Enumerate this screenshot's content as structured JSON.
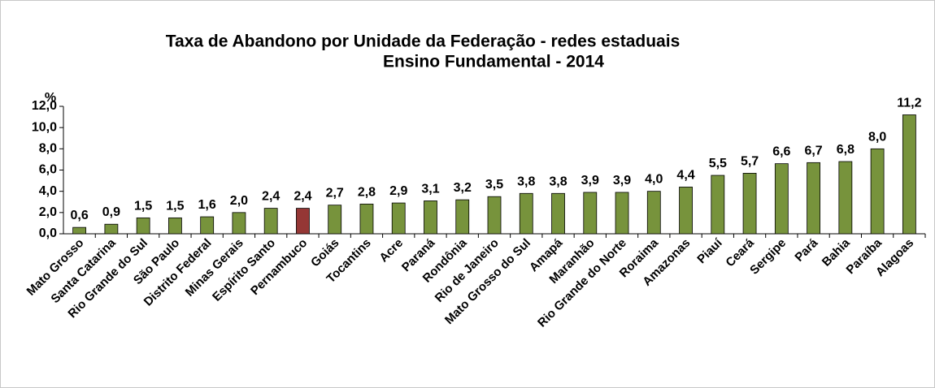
{
  "chart_data": {
    "type": "bar",
    "title": "Taxa de Abandono por Unidade da Federação - redes estaduais",
    "subtitle": "Ensino Fundamental - 2014",
    "y_label": "%",
    "categories": [
      "Mato Grosso",
      "Santa Catarina",
      "Rio Grande do Sul",
      "São Paulo",
      "Distrito Federal",
      "Minas Gerais",
      "Espírito Santo",
      "Pernambuco",
      "Goiás",
      "Tocantins",
      "Acre",
      "Paraná",
      "Rondônia",
      "Rio de Janeiro",
      "Mato Grosso do Sul",
      "Amapá",
      "Maranhão",
      "Rio Grande do Norte",
      "Roraima",
      "Amazonas",
      "Piauí",
      "Ceará",
      "Sergipe",
      "Pará",
      "Bahia",
      "Paraíba",
      "Alagoas"
    ],
    "values": [
      0.6,
      0.9,
      1.5,
      1.5,
      1.6,
      2.0,
      2.4,
      2.4,
      2.7,
      2.8,
      2.9,
      3.1,
      3.2,
      3.5,
      3.8,
      3.8,
      3.9,
      3.9,
      4.0,
      4.4,
      5.5,
      5.7,
      6.6,
      6.7,
      6.8,
      8.0,
      11.2
    ],
    "value_labels": [
      "0,6",
      "0,9",
      "1,5",
      "1,5",
      "1,6",
      "2,0",
      "2,4",
      "2,4",
      "2,7",
      "2,8",
      "2,9",
      "3,1",
      "3,2",
      "3,5",
      "3,8",
      "3,8",
      "3,9",
      "3,9",
      "4,0",
      "4,4",
      "5,5",
      "5,7",
      "6,6",
      "6,7",
      "6,8",
      "8,0",
      "11,2"
    ],
    "colors": [
      "#77933c",
      "#77933c",
      "#77933c",
      "#77933c",
      "#77933c",
      "#77933c",
      "#77933c",
      "#953735",
      "#77933c",
      "#77933c",
      "#77933c",
      "#77933c",
      "#77933c",
      "#77933c",
      "#77933c",
      "#77933c",
      "#77933c",
      "#77933c",
      "#77933c",
      "#77933c",
      "#77933c",
      "#77933c",
      "#77933c",
      "#77933c",
      "#77933c",
      "#77933c",
      "#77933c"
    ],
    "ylim": [
      0,
      12
    ],
    "yticks": [
      {
        "value": 0,
        "label": "0,0"
      },
      {
        "value": 2,
        "label": "2,0"
      },
      {
        "value": 4,
        "label": "4,0"
      },
      {
        "value": 6,
        "label": "6,0"
      },
      {
        "value": 8,
        "label": "8,0"
      },
      {
        "value": 10,
        "label": "10,0"
      },
      {
        "value": 12,
        "label": "12,0"
      }
    ],
    "grid": false
  }
}
